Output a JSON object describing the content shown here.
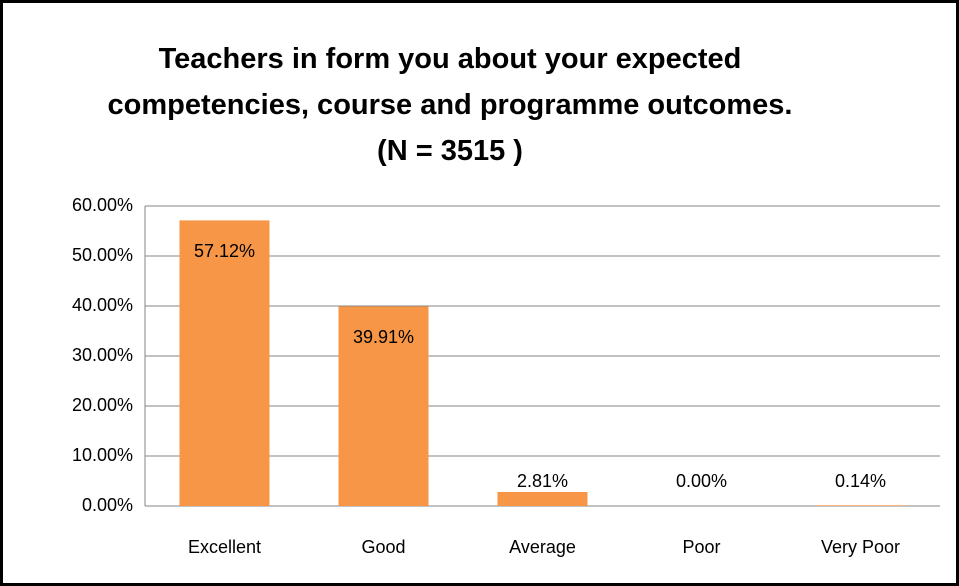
{
  "chart_data": {
    "type": "bar",
    "title": "Teachers in form you about your expected competencies, course and programme outcomes. (N = 3515 )",
    "categories": [
      "Excellent",
      "Good",
      "Average",
      "Poor",
      "Very Poor"
    ],
    "values": [
      57.12,
      39.91,
      2.81,
      0,
      0.14
    ],
    "value_labels": [
      "57.12%",
      "39.91%",
      "2.81%",
      "0.00%",
      "0.14%"
    ],
    "color": "#f79646",
    "ylim": [
      0,
      60
    ],
    "yticks": [
      {
        "value": 0,
        "label": "0.00%"
      },
      {
        "value": 10,
        "label": "10.00%"
      },
      {
        "value": 20,
        "label": "20.00%"
      },
      {
        "value": 30,
        "label": "30.00%"
      },
      {
        "value": 40,
        "label": "40.00%"
      },
      {
        "value": 50,
        "label": "50.00%"
      },
      {
        "value": 60,
        "label": "60.00%"
      }
    ],
    "grid": true
  }
}
